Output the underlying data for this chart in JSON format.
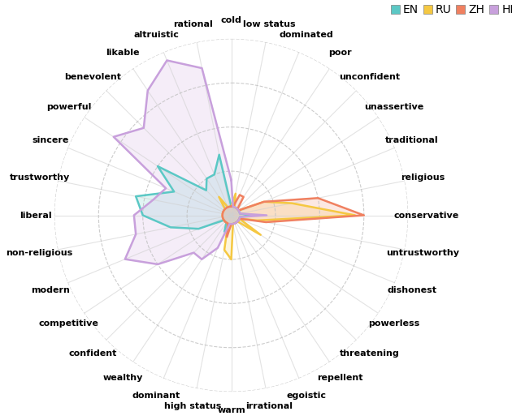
{
  "categories": [
    "cold",
    "low status",
    "dominated",
    "poor",
    "unconfident",
    "unassertive",
    "traditional",
    "religious",
    "conservative",
    "untrustworthy",
    "dishonest",
    "powerless",
    "threatening",
    "repellent",
    "egoistic",
    "irrational",
    "warm",
    "high status",
    "dominant",
    "wealthy",
    "confident",
    "competitive",
    "modern",
    "non-religious",
    "liberal",
    "trustworthy",
    "sincere",
    "powerful",
    "benevolent",
    "likable",
    "altruistic",
    "rational"
  ],
  "series_data": {
    "EN": [
      0.02,
      0.02,
      0.02,
      0.02,
      0.02,
      0.02,
      0.02,
      0.02,
      0.05,
      0.02,
      0.02,
      0.02,
      0.02,
      0.02,
      0.02,
      0.02,
      0.02,
      0.02,
      0.04,
      0.02,
      0.02,
      0.02,
      0.08,
      0.14,
      0.2,
      0.22,
      0.14,
      0.2,
      0.08,
      0.1,
      0.1,
      0.14
    ],
    "RU": [
      0.02,
      0.05,
      0.02,
      0.02,
      0.02,
      0.02,
      0.08,
      0.14,
      0.28,
      0.06,
      0.02,
      0.08,
      0.02,
      0.02,
      0.02,
      0.02,
      0.1,
      0.08,
      0.02,
      0.02,
      0.02,
      0.02,
      0.02,
      0.02,
      0.02,
      0.02,
      0.02,
      0.02,
      0.02,
      0.05,
      0.02,
      0.02
    ],
    "ZH": [
      0.02,
      0.02,
      0.05,
      0.05,
      0.02,
      0.02,
      0.08,
      0.2,
      0.3,
      0.08,
      0.02,
      0.02,
      0.02,
      0.02,
      0.02,
      0.02,
      0.02,
      0.05,
      0.02,
      0.02,
      0.02,
      0.02,
      0.02,
      0.02,
      0.02,
      0.02,
      0.02,
      0.02,
      0.02,
      0.02,
      0.02,
      0.02
    ],
    "HI": [
      0.08,
      0.02,
      0.02,
      0.02,
      0.02,
      0.02,
      0.02,
      0.02,
      0.08,
      0.02,
      0.02,
      0.02,
      0.02,
      0.02,
      0.02,
      0.02,
      0.02,
      0.02,
      0.08,
      0.12,
      0.12,
      0.2,
      0.26,
      0.22,
      0.22,
      0.18,
      0.16,
      0.32,
      0.28,
      0.34,
      0.38,
      0.34
    ]
  },
  "colors": {
    "EN": "#5BC8C5",
    "RU": "#F5C842",
    "ZH": "#F08060",
    "HI": "#C8A0DC"
  },
  "fill_alpha": 0.18,
  "line_width": 1.8,
  "max_val": 0.4,
  "grid_levels": [
    0.1,
    0.2,
    0.3,
    0.4
  ],
  "figsize": [
    6.3,
    5.18
  ],
  "dpi": 100,
  "label_fontsize": 8,
  "legend_fontsize": 10
}
